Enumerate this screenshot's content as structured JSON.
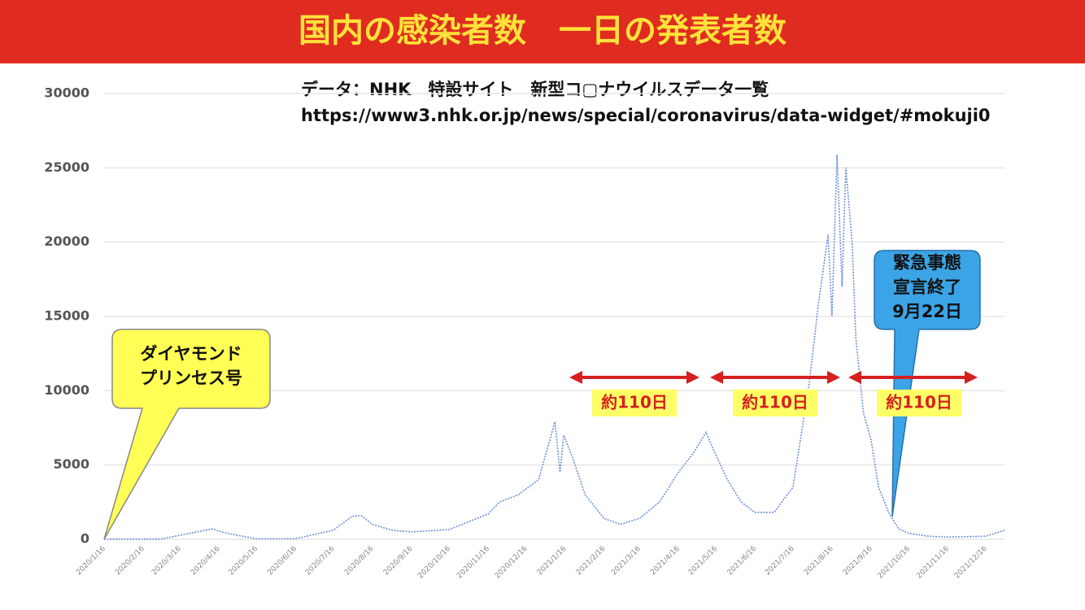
{
  "chart_data": {
    "type": "line",
    "title": "国内の感染者数　一日の発表者数",
    "source": [
      "データ：NHK　特設サイト　新型コ▢ナウイルスデータ一覧",
      "https://www3.nhk.or.jp/news/special/coronavirus/data-widget/#mokuji0"
    ],
    "callouts": [
      {
        "lines": [
          "ダイヤモンド",
          "プリンセス号"
        ]
      },
      {
        "lines": [
          "緊急事態",
          "宣言終了",
          "9月22日"
        ]
      }
    ],
    "durations": [
      "約110日",
      "約110日",
      "約110日"
    ],
    "x": [
      "2020/1/16",
      "2020/3/1",
      "2020/4/11",
      "2020/4/20",
      "2020/5/16",
      "2020/6/16",
      "2020/7/16",
      "2020/7/31",
      "2020/8/7",
      "2020/8/16",
      "2020/9/1",
      "2020/9/16",
      "2020/10/16",
      "2020/11/16",
      "2020/11/25",
      "2020/12/10",
      "2020/12/26",
      "2021/1/8",
      "2021/1/12",
      "2021/1/15",
      "2021/1/22",
      "2021/2/1",
      "2021/2/16",
      "2021/3/1",
      "2021/3/16",
      "2021/4/1",
      "2021/4/16",
      "2021/4/28",
      "2021/5/8",
      "2021/5/14",
      "2021/5/25",
      "2021/6/5",
      "2021/6/16",
      "2021/7/1",
      "2021/7/16",
      "2021/7/29",
      "2021/8/5",
      "2021/8/13",
      "2021/8/16",
      "2021/8/20",
      "2021/8/24",
      "2021/8/27",
      "2021/9/1",
      "2021/9/4",
      "2021/9/10",
      "2021/9/16",
      "2021/9/22",
      "2021/9/30",
      "2021/10/8",
      "2021/10/16",
      "2021/11/1",
      "2021/11/16",
      "2021/12/16",
      "2021/12/31"
    ],
    "values": [
      0,
      10,
      700,
      450,
      30,
      40,
      600,
      1550,
      1600,
      1000,
      600,
      500,
      650,
      1700,
      2500,
      3000,
      4000,
      7900,
      4500,
      7000,
      5500,
      3000,
      1400,
      1000,
      1400,
      2500,
      4500,
      5800,
      7200,
      6000,
      4000,
      2500,
      1800,
      1800,
      3500,
      10500,
      15700,
      20500,
      15000,
      25900,
      17000,
      25000,
      20000,
      13500,
      8500,
      6700,
      3500,
      1800,
      700,
      400,
      200,
      150,
      200,
      600
    ],
    "color": "#6f8fd8",
    "xlim": [
      "2020/1/16",
      "2021/12/31"
    ],
    "xticks": [
      "2020/1/16",
      "2020/2/16",
      "2020/3/16",
      "2020/4/16",
      "2020/5/16",
      "2020/6/16",
      "2020/7/16",
      "2020/8/16",
      "2020/9/16",
      "2020/10/16",
      "2020/11/16",
      "2020/12/16",
      "2021/1/16",
      "2021/2/16",
      "2021/3/16",
      "2021/4/16",
      "2021/5/16",
      "2021/6/16",
      "2021/7/16",
      "2021/8/16",
      "2021/9/16",
      "2021/10/16",
      "2021/11/16",
      "2021/12/16"
    ],
    "ylim": [
      0,
      30000
    ],
    "yticks": [
      0,
      5000,
      10000,
      15000,
      20000,
      25000,
      30000
    ],
    "grid": true
  }
}
